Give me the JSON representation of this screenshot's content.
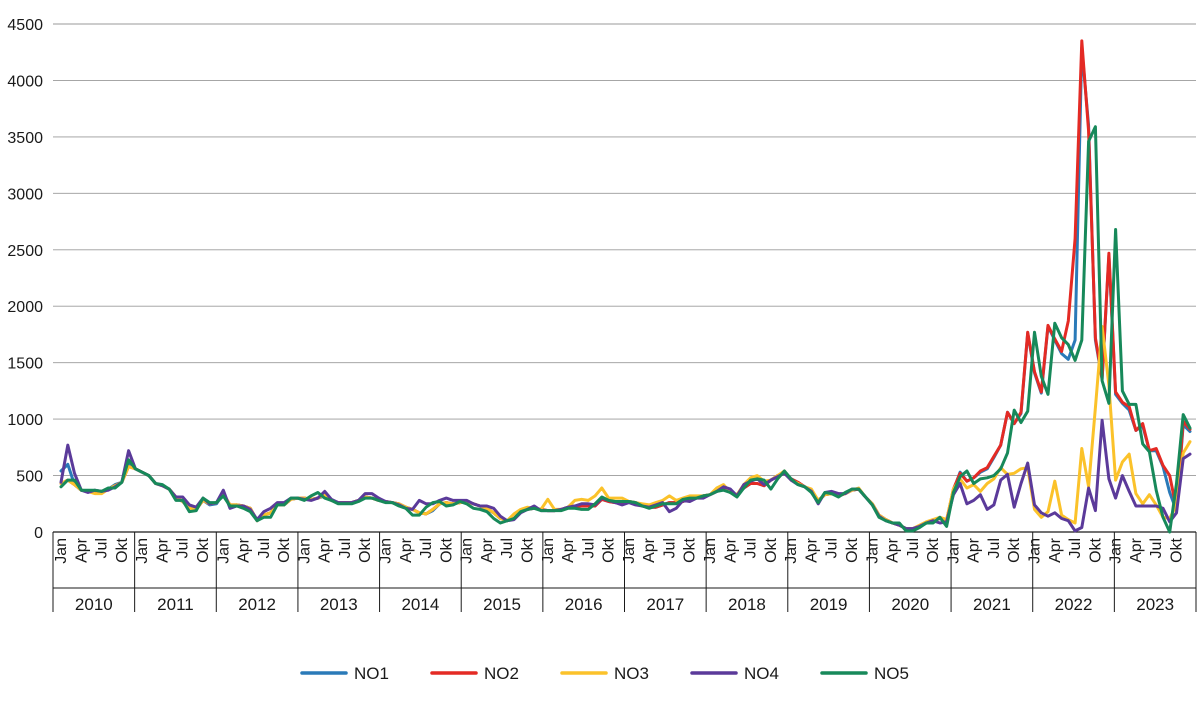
{
  "chart_data": {
    "type": "line",
    "ylim": [
      0,
      4500
    ],
    "yticks": [
      0,
      500,
      1000,
      1500,
      2000,
      2500,
      3000,
      3500,
      4000,
      4500
    ],
    "grid": true,
    "legend_position": "bottom-center",
    "month_tick_labels": [
      "Jan",
      "Apr",
      "Jul",
      "Okt"
    ],
    "years": [
      "2010",
      "2011",
      "2012",
      "2013",
      "2014",
      "2015",
      "2016",
      "2017",
      "2018",
      "2019",
      "2020",
      "2021",
      "2022",
      "2023"
    ],
    "x_start": "2010-01",
    "series": [
      {
        "name": "NO1",
        "color": "#2a7ab8",
        "values": [
          540,
          600,
          420,
          370,
          360,
          360,
          350,
          380,
          420,
          440,
          600,
          560,
          530,
          500,
          430,
          410,
          380,
          300,
          270,
          210,
          200,
          280,
          240,
          250,
          340,
          230,
          240,
          230,
          210,
          100,
          150,
          170,
          240,
          240,
          290,
          300,
          300,
          290,
          300,
          320,
          280,
          260,
          260,
          260,
          280,
          310,
          300,
          280,
          270,
          260,
          250,
          220,
          200,
          170,
          160,
          190,
          250,
          260,
          250,
          260,
          270,
          250,
          230,
          200,
          170,
          120,
          100,
          120,
          180,
          200,
          210,
          200,
          190,
          190,
          200,
          220,
          230,
          230,
          230,
          230,
          290,
          270,
          260,
          260,
          270,
          260,
          230,
          220,
          220,
          240,
          260,
          260,
          270,
          300,
          300,
          320,
          330,
          360,
          390,
          350,
          330,
          390,
          430,
          430,
          410,
          460,
          500,
          520,
          470,
          440,
          400,
          360,
          280,
          330,
          340,
          320,
          340,
          370,
          380,
          310,
          250,
          150,
          110,
          80,
          60,
          30,
          30,
          50,
          80,
          100,
          120,
          100,
          370,
          530,
          450,
          480,
          530,
          560,
          660,
          770,
          1060,
          960,
          1050,
          1760,
          1410,
          1230,
          1820,
          1700,
          1580,
          1530,
          1700,
          4290,
          3600,
          1700,
          1350,
          2450,
          1220,
          1140,
          1080,
          900,
          940,
          720,
          720,
          580,
          350,
          190,
          950,
          890
        ]
      },
      {
        "name": "NO2",
        "color": "#e42a24",
        "values": [
          430,
          460,
          420,
          370,
          360,
          360,
          360,
          380,
          410,
          440,
          580,
          560,
          530,
          500,
          430,
          410,
          380,
          310,
          270,
          210,
          200,
          280,
          250,
          260,
          340,
          240,
          240,
          230,
          210,
          100,
          150,
          170,
          240,
          240,
          290,
          300,
          300,
          290,
          300,
          330,
          280,
          260,
          260,
          260,
          280,
          310,
          300,
          280,
          270,
          260,
          250,
          220,
          200,
          170,
          160,
          200,
          250,
          260,
          250,
          260,
          270,
          250,
          230,
          210,
          170,
          120,
          100,
          120,
          180,
          200,
          210,
          200,
          190,
          190,
          200,
          220,
          230,
          230,
          230,
          230,
          290,
          270,
          260,
          260,
          270,
          260,
          230,
          220,
          220,
          240,
          260,
          260,
          270,
          300,
          300,
          320,
          330,
          360,
          390,
          350,
          330,
          390,
          430,
          430,
          410,
          460,
          500,
          520,
          470,
          440,
          400,
          360,
          280,
          330,
          340,
          320,
          340,
          370,
          380,
          310,
          250,
          150,
          110,
          80,
          60,
          30,
          30,
          50,
          80,
          100,
          120,
          100,
          380,
          520,
          450,
          480,
          540,
          570,
          670,
          770,
          1060,
          960,
          1060,
          1770,
          1420,
          1240,
          1830,
          1710,
          1600,
          1870,
          2600,
          4350,
          3550,
          1720,
          1360,
          2470,
          1240,
          1150,
          1110,
          900,
          960,
          720,
          740,
          590,
          500,
          200,
          980,
          910
        ]
      },
      {
        "name": "NO3",
        "color": "#fbc22a",
        "values": [
          430,
          460,
          420,
          370,
          360,
          340,
          340,
          380,
          410,
          440,
          580,
          560,
          530,
          500,
          430,
          410,
          380,
          310,
          270,
          210,
          200,
          280,
          250,
          260,
          340,
          240,
          240,
          230,
          210,
          100,
          150,
          170,
          240,
          240,
          290,
          300,
          300,
          290,
          300,
          330,
          280,
          260,
          260,
          260,
          280,
          310,
          300,
          280,
          270,
          260,
          250,
          220,
          200,
          170,
          160,
          200,
          250,
          260,
          250,
          260,
          270,
          250,
          230,
          210,
          170,
          120,
          100,
          160,
          200,
          220,
          210,
          200,
          290,
          200,
          200,
          220,
          280,
          290,
          280,
          320,
          390,
          300,
          300,
          300,
          270,
          260,
          250,
          240,
          260,
          280,
          320,
          280,
          300,
          320,
          320,
          320,
          330,
          390,
          420,
          350,
          330,
          420,
          480,
          500,
          450,
          460,
          500,
          540,
          460,
          430,
          400,
          380,
          280,
          330,
          340,
          330,
          340,
          370,
          390,
          310,
          250,
          150,
          110,
          80,
          60,
          30,
          30,
          60,
          90,
          110,
          130,
          110,
          380,
          470,
          390,
          420,
          360,
          430,
          470,
          570,
          510,
          520,
          560,
          570,
          200,
          130,
          180,
          450,
          150,
          110,
          80,
          740,
          400,
          1100,
          1820,
          1300,
          460,
          620,
          690,
          340,
          250,
          330,
          240,
          130,
          120,
          240,
          700,
          800
        ]
      },
      {
        "name": "NO4",
        "color": "#5b3a9a",
        "values": [
          440,
          770,
          520,
          370,
          350,
          370,
          360,
          370,
          400,
          440,
          720,
          560,
          530,
          500,
          430,
          410,
          380,
          310,
          310,
          240,
          220,
          300,
          250,
          260,
          370,
          210,
          230,
          230,
          200,
          110,
          180,
          210,
          260,
          260,
          300,
          300,
          290,
          280,
          300,
          360,
          290,
          260,
          260,
          260,
          280,
          340,
          340,
          300,
          270,
          260,
          240,
          210,
          200,
          280,
          250,
          250,
          280,
          300,
          280,
          280,
          280,
          250,
          230,
          230,
          210,
          140,
          100,
          110,
          170,
          200,
          230,
          190,
          190,
          190,
          200,
          220,
          230,
          250,
          250,
          240,
          300,
          280,
          260,
          240,
          260,
          240,
          230,
          220,
          240,
          260,
          180,
          210,
          280,
          270,
          300,
          300,
          330,
          360,
          400,
          380,
          320,
          420,
          450,
          470,
          420,
          460,
          490,
          520,
          460,
          420,
          400,
          360,
          250,
          350,
          360,
          340,
          340,
          380,
          380,
          310,
          240,
          140,
          100,
          80,
          60,
          30,
          30,
          50,
          80,
          100,
          80,
          90,
          330,
          430,
          250,
          280,
          330,
          200,
          240,
          460,
          510,
          220,
          430,
          610,
          240,
          170,
          140,
          170,
          120,
          100,
          10,
          40,
          390,
          190,
          990,
          470,
          300,
          500,
          360,
          230,
          230,
          230,
          230,
          210,
          90,
          170,
          650,
          690
        ]
      },
      {
        "name": "NO5",
        "color": "#17895a",
        "values": [
          400,
          460,
          460,
          370,
          370,
          370,
          360,
          390,
          390,
          440,
          640,
          560,
          530,
          500,
          430,
          420,
          380,
          280,
          280,
          180,
          190,
          300,
          260,
          260,
          320,
          230,
          230,
          210,
          180,
          100,
          130,
          130,
          240,
          240,
          300,
          300,
          280,
          320,
          350,
          300,
          280,
          250,
          250,
          250,
          270,
          300,
          300,
          280,
          260,
          260,
          230,
          210,
          150,
          150,
          220,
          260,
          270,
          230,
          240,
          270,
          250,
          210,
          200,
          180,
          120,
          80,
          100,
          120,
          180,
          200,
          210,
          190,
          190,
          190,
          190,
          210,
          210,
          200,
          200,
          250,
          310,
          280,
          270,
          270,
          270,
          260,
          230,
          210,
          230,
          250,
          250,
          250,
          290,
          300,
          300,
          320,
          330,
          360,
          370,
          350,
          310,
          390,
          460,
          470,
          460,
          380,
          470,
          540,
          470,
          420,
          400,
          350,
          260,
          350,
          340,
          310,
          350,
          380,
          380,
          310,
          240,
          130,
          100,
          80,
          80,
          10,
          10,
          40,
          80,
          80,
          130,
          50,
          350,
          490,
          540,
          430,
          470,
          480,
          500,
          560,
          700,
          1080,
          970,
          1070,
          1770,
          1380,
          1220,
          1850,
          1720,
          1660,
          1520,
          1700,
          3460,
          3590,
          1340,
          1140,
          2680,
          1250,
          1130,
          1130,
          780,
          710,
          370,
          130,
          0,
          430,
          1040,
          920
        ]
      }
    ]
  }
}
